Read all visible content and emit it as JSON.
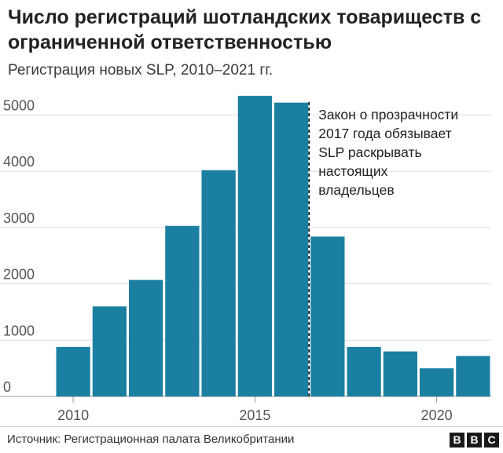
{
  "chart_data": {
    "type": "bar",
    "title": "Число регистраций шотландских товариществ с ограниченной ответственностью",
    "subtitle": "Регистрация новых SLP, 2010–2021 гг.",
    "categories": [
      2010,
      2011,
      2012,
      2013,
      2014,
      2015,
      2016,
      2017,
      2018,
      2019,
      2020,
      2021
    ],
    "values": [
      880,
      1600,
      2070,
      3030,
      4020,
      5340,
      5220,
      2840,
      880,
      800,
      500,
      720
    ],
    "ylim": [
      0,
      5300
    ],
    "yticks": [
      0,
      1000,
      2000,
      3000,
      4000,
      5000
    ],
    "xticks": [
      2010,
      2015,
      2020
    ],
    "bar_color": "#1a7fa0",
    "annotation": {
      "after_year": 2016,
      "lines": [
        "Закон о прозрачности",
        "2017 года обязывает",
        "SLP раскрывать",
        "настоящих",
        "владельцев"
      ]
    }
  },
  "footer": {
    "source": "Источник: Регистрационная палата Великобритании",
    "logo_letters": [
      "B",
      "B",
      "C"
    ]
  }
}
